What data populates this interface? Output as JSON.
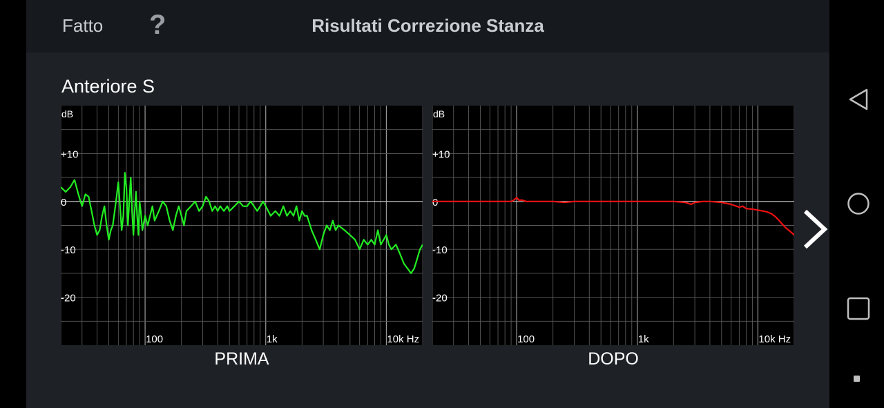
{
  "header": {
    "done_label": "Fatto",
    "help_label": "?",
    "title": "Risultati Correzione Stanza"
  },
  "section": {
    "title": "Anteriore S"
  },
  "colors": {
    "before_curve": "#22ee22",
    "after_curve": "#ee1111",
    "grid": "#7a7a7a",
    "zero_line": "#d0d0d0"
  },
  "chart_data": [
    {
      "type": "line",
      "id": "before",
      "caption": "PRIMA",
      "ylabel": "dB",
      "xscale": "log",
      "xlim": [
        20,
        20000
      ],
      "ylim": [
        -30,
        20
      ],
      "y_ticks": [
        {
          "v": 10,
          "label": "+10"
        },
        {
          "v": 0,
          "label": "0"
        },
        {
          "v": -10,
          "label": "-10"
        },
        {
          "v": -20,
          "label": "-20"
        }
      ],
      "x_ticks": [
        {
          "v": 100,
          "label": "100"
        },
        {
          "v": 1000,
          "label": "1k"
        },
        {
          "v": 10000,
          "label": "10k Hz"
        }
      ],
      "points": [
        [
          20,
          3
        ],
        [
          22,
          2
        ],
        [
          24,
          3
        ],
        [
          26,
          4.5
        ],
        [
          28,
          1.5
        ],
        [
          30,
          -1
        ],
        [
          32,
          1.5
        ],
        [
          34,
          1
        ],
        [
          36,
          -2
        ],
        [
          38,
          -5
        ],
        [
          40,
          -7
        ],
        [
          42,
          -6
        ],
        [
          44,
          -3
        ],
        [
          46,
          -1
        ],
        [
          48,
          -5
        ],
        [
          50,
          -8
        ],
        [
          52,
          -6
        ],
        [
          54,
          -5
        ],
        [
          56,
          -2
        ],
        [
          58,
          1
        ],
        [
          60,
          4
        ],
        [
          62,
          -1
        ],
        [
          64,
          -6
        ],
        [
          66,
          -3
        ],
        [
          68,
          6
        ],
        [
          70,
          3
        ],
        [
          72,
          -5
        ],
        [
          74,
          0
        ],
        [
          76,
          5
        ],
        [
          78,
          -2
        ],
        [
          80,
          -7
        ],
        [
          82,
          -2
        ],
        [
          84,
          2
        ],
        [
          86,
          -3
        ],
        [
          88,
          -7
        ],
        [
          90,
          0
        ],
        [
          92,
          -2
        ],
        [
          95,
          -6
        ],
        [
          100,
          -3
        ],
        [
          105,
          -5
        ],
        [
          110,
          -3
        ],
        [
          115,
          -1
        ],
        [
          120,
          -4
        ],
        [
          130,
          -2
        ],
        [
          140,
          0
        ],
        [
          150,
          -1
        ],
        [
          160,
          -4
        ],
        [
          170,
          -6
        ],
        [
          180,
          -3
        ],
        [
          190,
          -1
        ],
        [
          200,
          -3
        ],
        [
          210,
          -5
        ],
        [
          220,
          -2
        ],
        [
          240,
          -1
        ],
        [
          260,
          0
        ],
        [
          280,
          -2
        ],
        [
          300,
          -1
        ],
        [
          320,
          1
        ],
        [
          340,
          0
        ],
        [
          360,
          -2
        ],
        [
          380,
          -1
        ],
        [
          400,
          -2
        ],
        [
          420,
          -1
        ],
        [
          450,
          -2
        ],
        [
          480,
          -1
        ],
        [
          500,
          -2
        ],
        [
          550,
          -1
        ],
        [
          600,
          0
        ],
        [
          650,
          -1
        ],
        [
          700,
          -1
        ],
        [
          750,
          0
        ],
        [
          800,
          -1
        ],
        [
          850,
          -2
        ],
        [
          900,
          -1
        ],
        [
          950,
          0
        ],
        [
          1000,
          -1
        ],
        [
          1100,
          -3
        ],
        [
          1200,
          -2
        ],
        [
          1300,
          -3
        ],
        [
          1400,
          -1
        ],
        [
          1500,
          -3
        ],
        [
          1600,
          -2
        ],
        [
          1700,
          -3
        ],
        [
          1800,
          -1
        ],
        [
          1900,
          -4
        ],
        [
          2000,
          -2
        ],
        [
          2100,
          -3
        ],
        [
          2200,
          -3
        ],
        [
          2400,
          -6
        ],
        [
          2600,
          -8
        ],
        [
          2800,
          -10
        ],
        [
          3000,
          -7
        ],
        [
          3200,
          -5
        ],
        [
          3400,
          -6
        ],
        [
          3600,
          -4
        ],
        [
          3800,
          -6
        ],
        [
          4000,
          -5
        ],
        [
          4500,
          -6
        ],
        [
          5000,
          -7
        ],
        [
          5500,
          -8
        ],
        [
          6000,
          -10
        ],
        [
          6500,
          -8
        ],
        [
          7000,
          -9
        ],
        [
          7500,
          -8
        ],
        [
          8000,
          -9
        ],
        [
          8500,
          -6
        ],
        [
          9000,
          -9
        ],
        [
          9500,
          -8
        ],
        [
          10000,
          -7
        ],
        [
          10500,
          -9
        ],
        [
          11000,
          -10
        ],
        [
          12000,
          -9
        ],
        [
          13000,
          -11
        ],
        [
          14000,
          -13
        ],
        [
          15000,
          -14
        ],
        [
          16000,
          -15
        ],
        [
          17000,
          -14
        ],
        [
          18000,
          -12
        ],
        [
          19000,
          -10
        ],
        [
          20000,
          -9
        ]
      ]
    },
    {
      "type": "line",
      "id": "after",
      "caption": "DOPO",
      "ylabel": "dB",
      "xscale": "log",
      "xlim": [
        20,
        20000
      ],
      "ylim": [
        -30,
        20
      ],
      "y_ticks": [
        {
          "v": 10,
          "label": "+10"
        },
        {
          "v": 0,
          "label": "0"
        },
        {
          "v": -10,
          "label": "-10"
        },
        {
          "v": -20,
          "label": "-20"
        }
      ],
      "x_ticks": [
        {
          "v": 100,
          "label": "100"
        },
        {
          "v": 1000,
          "label": "1k"
        },
        {
          "v": 10000,
          "label": "10k Hz"
        }
      ],
      "points": [
        [
          20,
          0
        ],
        [
          30,
          0
        ],
        [
          40,
          0
        ],
        [
          50,
          0
        ],
        [
          60,
          0
        ],
        [
          70,
          0
        ],
        [
          80,
          0
        ],
        [
          90,
          0
        ],
        [
          95,
          0.3
        ],
        [
          100,
          0.8
        ],
        [
          105,
          0.2
        ],
        [
          110,
          0.3
        ],
        [
          120,
          0
        ],
        [
          150,
          0
        ],
        [
          200,
          0
        ],
        [
          250,
          -0.2
        ],
        [
          300,
          0
        ],
        [
          400,
          0
        ],
        [
          500,
          0
        ],
        [
          700,
          0
        ],
        [
          1000,
          0
        ],
        [
          1500,
          0
        ],
        [
          2000,
          0
        ],
        [
          2500,
          -0.2
        ],
        [
          2800,
          -0.6
        ],
        [
          3000,
          -0.2
        ],
        [
          3500,
          0
        ],
        [
          4000,
          0
        ],
        [
          5000,
          -0.2
        ],
        [
          6000,
          -0.6
        ],
        [
          7000,
          -1.2
        ],
        [
          7500,
          -1.0
        ],
        [
          8000,
          -1.5
        ],
        [
          9000,
          -1.6
        ],
        [
          10000,
          -1.8
        ],
        [
          11000,
          -2.0
        ],
        [
          12000,
          -2.2
        ],
        [
          13000,
          -2.6
        ],
        [
          14000,
          -3.2
        ],
        [
          15000,
          -4.0
        ],
        [
          16000,
          -4.8
        ],
        [
          17000,
          -5.5
        ],
        [
          18000,
          -6.0
        ],
        [
          19000,
          -6.5
        ],
        [
          20000,
          -7.0
        ]
      ]
    }
  ]
}
